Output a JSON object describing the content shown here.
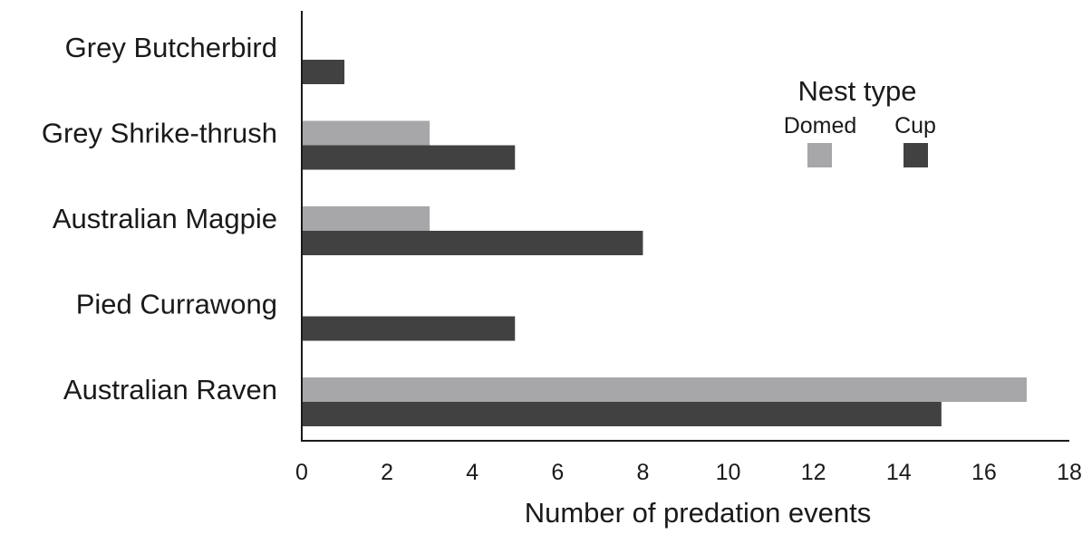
{
  "chart_data": {
    "type": "bar",
    "orientation": "horizontal",
    "categories": [
      "Grey Butcherbird",
      "Grey Shrike-thrush",
      "Australian Magpie",
      "Pied Currawong",
      "Australian Raven"
    ],
    "series": [
      {
        "name": "Domed",
        "values": [
          0,
          3,
          3,
          0,
          17
        ],
        "color": "#a7a7a9"
      },
      {
        "name": "Cup",
        "values": [
          1,
          5,
          8,
          5,
          15
        ],
        "color": "#414142"
      }
    ],
    "xlabel": "Number of predation events",
    "ylabel": "",
    "xlim": [
      0,
      18
    ],
    "xticks": [
      "0",
      "2",
      "4",
      "6",
      "8",
      "10",
      "12",
      "14",
      "16",
      "18"
    ],
    "legend": {
      "title": "Nest type",
      "placement": "top-right"
    },
    "grid": false
  }
}
